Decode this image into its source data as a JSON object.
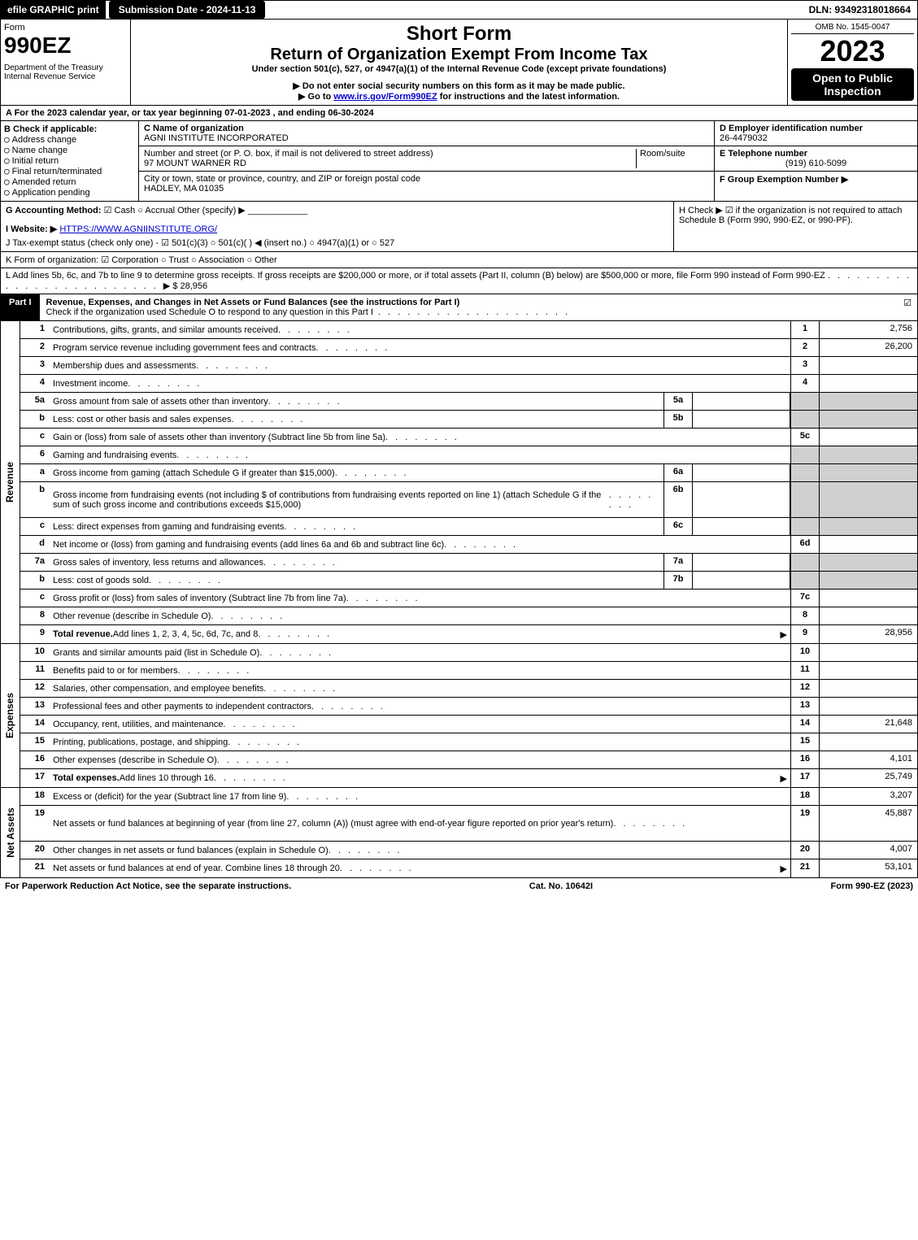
{
  "topbar": {
    "efile": "efile GRAPHIC print",
    "submission": "Submission Date - 2024-11-13",
    "dln": "DLN: 93492318018664"
  },
  "header": {
    "form_label": "Form",
    "form_number": "990EZ",
    "dept": "Department of the Treasury",
    "irs": "Internal Revenue Service",
    "short_form": "Short Form",
    "title": "Return of Organization Exempt From Income Tax",
    "subtitle": "Under section 501(c), 527, or 4947(a)(1) of the Internal Revenue Code (except private foundations)",
    "note1": "▶ Do not enter social security numbers on this form as it may be made public.",
    "note2": "▶ Go to www.irs.gov/Form990EZ for instructions and the latest information.",
    "omb": "OMB No. 1545-0047",
    "year": "2023",
    "open": "Open to Public Inspection"
  },
  "section_a": "A  For the 2023 calendar year, or tax year beginning 07-01-2023 , and ending 06-30-2024",
  "col_b": {
    "title": "B  Check if applicable:",
    "opts": [
      "Address change",
      "Name change",
      "Initial return",
      "Final return/terminated",
      "Amended return",
      "Application pending"
    ]
  },
  "col_c": {
    "name_label": "C Name of organization",
    "name": "AGNI INSTITUTE INCORPORATED",
    "street_label": "Number and street (or P. O. box, if mail is not delivered to street address)",
    "room_label": "Room/suite",
    "street": "97 MOUNT WARNER RD",
    "city_label": "City or town, state or province, country, and ZIP or foreign postal code",
    "city": "HADLEY, MA  01035"
  },
  "col_d": {
    "ein_label": "D Employer identification number",
    "ein": "26-4479032",
    "tel_label": "E Telephone number",
    "tel": "(919) 610-5099",
    "group_label": "F Group Exemption Number  ▶"
  },
  "line_g": {
    "label": "G Accounting Method:",
    "cash": "Cash",
    "accrual": "Accrual",
    "other": "Other (specify) ▶"
  },
  "line_h": "H  Check ▶ ☑ if the organization is not required to attach Schedule B (Form 990, 990-EZ, or 990-PF).",
  "line_i": {
    "label": "I Website: ▶",
    "url": "HTTPS://WWW.AGNIINSTITUTE.ORG/"
  },
  "line_j": "J Tax-exempt status (check only one) - ☑ 501(c)(3)  ○ 501(c)(  ) ◀ (insert no.)  ○ 4947(a)(1) or  ○ 527",
  "line_k": "K Form of organization:  ☑ Corporation  ○ Trust  ○ Association  ○ Other",
  "line_l": {
    "text": "L Add lines 5b, 6c, and 7b to line 9 to determine gross receipts. If gross receipts are $200,000 or more, or if total assets (Part II, column (B) below) are $500,000 or more, file Form 990 instead of Form 990-EZ",
    "amount": "▶ $ 28,956"
  },
  "part1": {
    "label": "Part I",
    "title": "Revenue, Expenses, and Changes in Net Assets or Fund Balances (see the instructions for Part I)",
    "check_text": "Check if the organization used Schedule O to respond to any question in this Part I"
  },
  "revenue": {
    "side": "Revenue",
    "rows": [
      {
        "n": "1",
        "d": "Contributions, gifts, grants, and similar amounts received",
        "rn": "1",
        "rv": "2,756"
      },
      {
        "n": "2",
        "d": "Program service revenue including government fees and contracts",
        "rn": "2",
        "rv": "26,200"
      },
      {
        "n": "3",
        "d": "Membership dues and assessments",
        "rn": "3",
        "rv": ""
      },
      {
        "n": "4",
        "d": "Investment income",
        "rn": "4",
        "rv": ""
      },
      {
        "n": "5a",
        "d": "Gross amount from sale of assets other than inventory",
        "sn": "5a",
        "shaded": true
      },
      {
        "n": "b",
        "d": "Less: cost or other basis and sales expenses",
        "sn": "5b",
        "shaded": true
      },
      {
        "n": "c",
        "d": "Gain or (loss) from sale of assets other than inventory (Subtract line 5b from line 5a)",
        "rn": "5c",
        "rv": ""
      },
      {
        "n": "6",
        "d": "Gaming and fundraising events",
        "noright": true
      },
      {
        "n": "a",
        "d": "Gross income from gaming (attach Schedule G if greater than $15,000)",
        "sn": "6a",
        "shaded": true
      },
      {
        "n": "b",
        "d": "Gross income from fundraising events (not including $                    of contributions from fundraising events reported on line 1) (attach Schedule G if the sum of such gross income and contributions exceeds $15,000)",
        "sn": "6b",
        "shaded": true,
        "tall": true
      },
      {
        "n": "c",
        "d": "Less: direct expenses from gaming and fundraising events",
        "sn": "6c",
        "shaded": true
      },
      {
        "n": "d",
        "d": "Net income or (loss) from gaming and fundraising events (add lines 6a and 6b and subtract line 6c)",
        "rn": "6d",
        "rv": ""
      },
      {
        "n": "7a",
        "d": "Gross sales of inventory, less returns and allowances",
        "sn": "7a",
        "shaded": true
      },
      {
        "n": "b",
        "d": "Less: cost of goods sold",
        "sn": "7b",
        "shaded": true
      },
      {
        "n": "c",
        "d": "Gross profit or (loss) from sales of inventory (Subtract line 7b from line 7a)",
        "rn": "7c",
        "rv": ""
      },
      {
        "n": "8",
        "d": "Other revenue (describe in Schedule O)",
        "rn": "8",
        "rv": ""
      },
      {
        "n": "9",
        "d": "Total revenue. Add lines 1, 2, 3, 4, 5c, 6d, 7c, and 8",
        "rn": "9",
        "rv": "28,956",
        "bold": true,
        "arrow": true
      }
    ]
  },
  "expenses": {
    "side": "Expenses",
    "rows": [
      {
        "n": "10",
        "d": "Grants and similar amounts paid (list in Schedule O)",
        "rn": "10",
        "rv": ""
      },
      {
        "n": "11",
        "d": "Benefits paid to or for members",
        "rn": "11",
        "rv": ""
      },
      {
        "n": "12",
        "d": "Salaries, other compensation, and employee benefits",
        "rn": "12",
        "rv": ""
      },
      {
        "n": "13",
        "d": "Professional fees and other payments to independent contractors",
        "rn": "13",
        "rv": ""
      },
      {
        "n": "14",
        "d": "Occupancy, rent, utilities, and maintenance",
        "rn": "14",
        "rv": "21,648"
      },
      {
        "n": "15",
        "d": "Printing, publications, postage, and shipping",
        "rn": "15",
        "rv": ""
      },
      {
        "n": "16",
        "d": "Other expenses (describe in Schedule O)",
        "rn": "16",
        "rv": "4,101"
      },
      {
        "n": "17",
        "d": "Total expenses. Add lines 10 through 16",
        "rn": "17",
        "rv": "25,749",
        "bold": true,
        "arrow": true
      }
    ]
  },
  "netassets": {
    "side": "Net Assets",
    "rows": [
      {
        "n": "18",
        "d": "Excess or (deficit) for the year (Subtract line 17 from line 9)",
        "rn": "18",
        "rv": "3,207"
      },
      {
        "n": "19",
        "d": "Net assets or fund balances at beginning of year (from line 27, column (A)) (must agree with end-of-year figure reported on prior year's return)",
        "rn": "19",
        "rv": "45,887",
        "tall": true
      },
      {
        "n": "20",
        "d": "Other changes in net assets or fund balances (explain in Schedule O)",
        "rn": "20",
        "rv": "4,007"
      },
      {
        "n": "21",
        "d": "Net assets or fund balances at end of year. Combine lines 18 through 20",
        "rn": "21",
        "rv": "53,101",
        "arrow": true
      }
    ]
  },
  "footer": {
    "left": "For Paperwork Reduction Act Notice, see the separate instructions.",
    "center": "Cat. No. 10642I",
    "right": "Form 990-EZ (2023)"
  }
}
